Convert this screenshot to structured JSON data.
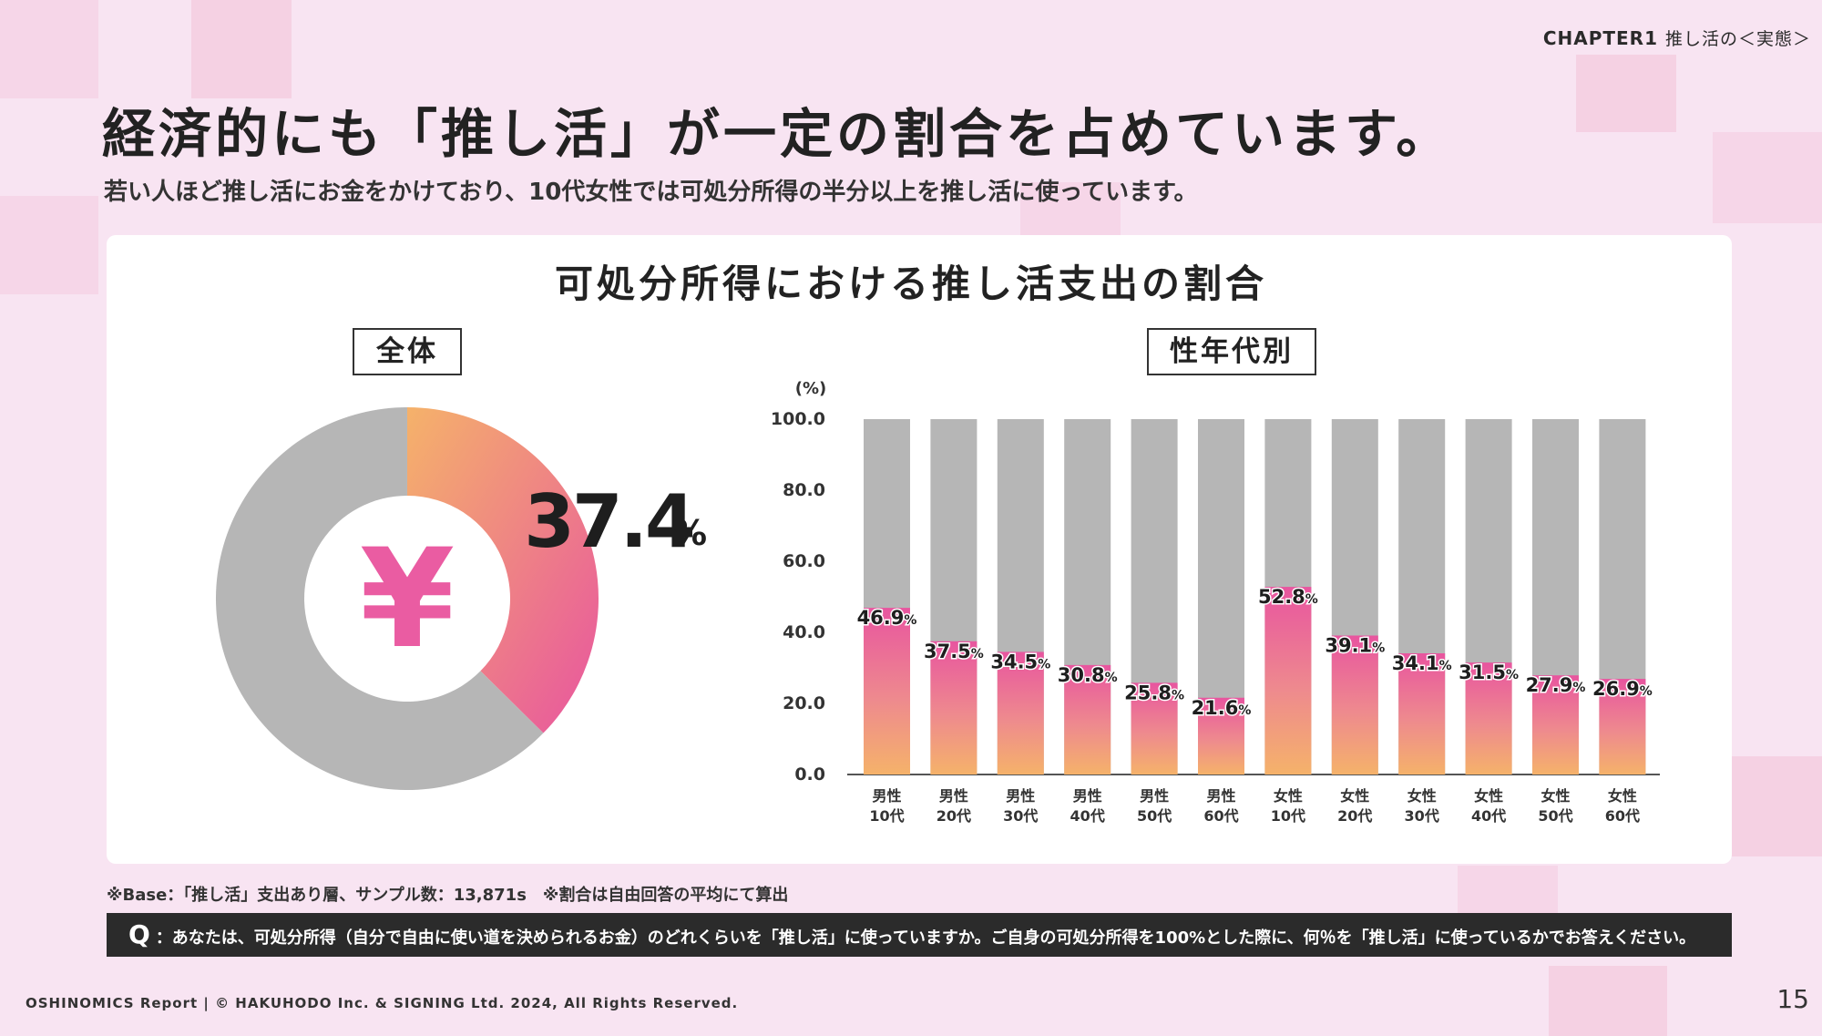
{
  "header": {
    "chapter_label": "CHAPTER1",
    "chapter_sub": "推し活の＜実態＞"
  },
  "title": "経済的にも「推し活」が一定の割合を占めています。",
  "subtitle": "若い人ほど推し活にお金をかけており、10代女性では可処分所得の半分以上を推し活に使っています。",
  "panel": {
    "title": "可処分所得における推し活支出の割合",
    "overall_label": "全体",
    "demographic_label": "性年代別",
    "yen_symbol": "¥"
  },
  "colors": {
    "gray": "#b6b6b6",
    "gradient_top": "#e8559f",
    "gradient_bottom": "#f5b26a",
    "yen": "#ea5ca2"
  },
  "chart_data": [
    {
      "type": "pie",
      "title": "全体",
      "values": [
        37.4,
        62.6
      ],
      "value_label": "37.4",
      "unit": "%"
    },
    {
      "type": "bar",
      "title": "性年代別",
      "ylabel": "(%)",
      "ylim": [
        0,
        100
      ],
      "yticks": [
        "0.0",
        "20.0",
        "40.0",
        "60.0",
        "80.0",
        "100.0"
      ],
      "categories": [
        [
          "男性",
          "10代"
        ],
        [
          "男性",
          "20代"
        ],
        [
          "男性",
          "30代"
        ],
        [
          "男性",
          "40代"
        ],
        [
          "男性",
          "50代"
        ],
        [
          "男性",
          "60代"
        ],
        [
          "女性",
          "10代"
        ],
        [
          "女性",
          "20代"
        ],
        [
          "女性",
          "30代"
        ],
        [
          "女性",
          "40代"
        ],
        [
          "女性",
          "50代"
        ],
        [
          "女性",
          "60代"
        ]
      ],
      "values": [
        46.9,
        37.5,
        34.5,
        30.8,
        25.8,
        21.6,
        52.8,
        39.1,
        34.1,
        31.5,
        27.9,
        26.9
      ],
      "unit": "%"
    }
  ],
  "footnote": "※Base：「推し活」支出あり層、サンプル数：13,871s　※割合は自由回答の平均にて算出",
  "question": {
    "q": "Q",
    "text": "：あなたは、可処分所得（自分で自由に使い道を決められるお金）のどれくらいを「推し活」に使っていますか。ご自身の可処分所得を100%とした際に、何％を「推し活」に使っているかでお答えください。"
  },
  "copyright": "OSHINOMICS Report | © HAKUHODO Inc. & SIGNING Ltd. 2024, All Rights Reserved.",
  "page_number": "15"
}
